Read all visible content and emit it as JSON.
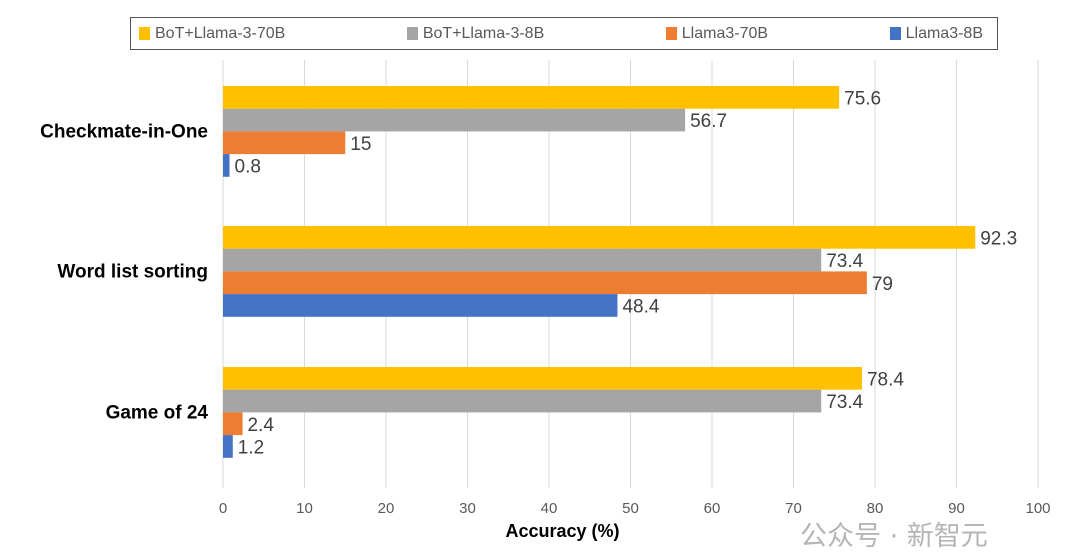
{
  "chart_data": {
    "type": "bar",
    "orientation": "horizontal",
    "categories": [
      "Checkmate-in-One",
      "Word list sorting",
      "Game of 24"
    ],
    "series": [
      {
        "name": "BoT+Llama-3-70B",
        "color": "#FFC000",
        "values": [
          75.6,
          92.3,
          78.4
        ]
      },
      {
        "name": "BoT+Llama-3-8B",
        "color": "#A5A5A5",
        "values": [
          56.7,
          73.4,
          73.4
        ]
      },
      {
        "name": "Llama3-70B",
        "color": "#ED7D31",
        "values": [
          15,
          79,
          2.4
        ]
      },
      {
        "name": "Llama3-8B",
        "color": "#4472C4",
        "values": [
          0.8,
          48.4,
          1.2
        ]
      }
    ],
    "xlabel": "Accuracy (%)",
    "ylabel": "",
    "xlim": [
      0,
      100
    ],
    "xticks": [
      "0",
      "10",
      "20",
      "30",
      "40",
      "50",
      "60",
      "70",
      "80",
      "90",
      "100"
    ],
    "grid": "vertical",
    "legend": "top",
    "data_labels": true
  },
  "watermark": "公众号 · 新智元"
}
